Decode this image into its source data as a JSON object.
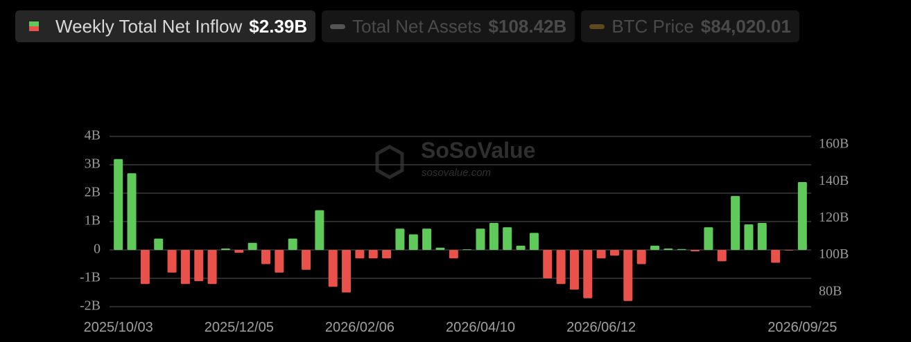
{
  "chart_data": {
    "type": "bar",
    "series": [
      {
        "name": "Weekly Total Net Inflow",
        "legend_value": "$2.39B",
        "color": "#5fc95a",
        "negative_color": "#e8524a",
        "values": [
          3.2,
          2.7,
          -1.2,
          0.4,
          -0.8,
          -1.2,
          -1.1,
          -1.2,
          0.05,
          -0.1,
          0.25,
          -0.5,
          -0.8,
          0.4,
          -0.7,
          1.4,
          -1.3,
          -1.5,
          -0.3,
          -0.3,
          -0.3,
          0.75,
          0.55,
          0.75,
          0.08,
          -0.3,
          0.02,
          0.75,
          0.95,
          0.8,
          0.15,
          0.6,
          -1.0,
          -1.2,
          -1.4,
          -1.7,
          -0.3,
          -0.2,
          -1.8,
          -0.5,
          0.15,
          0.05,
          0.03,
          -0.05,
          0.8,
          -0.4,
          1.9,
          0.9,
          0.95,
          -0.45,
          -0.02,
          2.39
        ]
      }
    ],
    "inactive_series": [
      {
        "name": "Total Net Assets",
        "legend_value": "$108.42B",
        "color": "#555555"
      },
      {
        "name": "BTC Price",
        "legend_value": "$84,020.01",
        "color": "#5e4a1e"
      }
    ],
    "categories": [
      "2025/10/03",
      null,
      null,
      null,
      null,
      null,
      null,
      null,
      null,
      "2025/12/05",
      null,
      null,
      null,
      null,
      null,
      null,
      null,
      null,
      "2026/02/06",
      null,
      null,
      null,
      null,
      null,
      null,
      null,
      null,
      "2026/04/10",
      null,
      null,
      null,
      null,
      null,
      null,
      null,
      null,
      "2026/06/12",
      null,
      null,
      null,
      null,
      null,
      null,
      null,
      null,
      null,
      null,
      null,
      null,
      null,
      null,
      "2026/09/25"
    ],
    "ylim": [
      -2,
      4
    ],
    "yticks": [
      {
        "value": -2,
        "label": "-2B"
      },
      {
        "value": -1,
        "label": "-1B"
      },
      0,
      {
        "value": 1,
        "label": "1B"
      },
      {
        "value": 2,
        "label": "2B"
      },
      {
        "value": 3,
        "label": "3B"
      },
      {
        "value": 4,
        "label": "4B"
      }
    ],
    "y2lim": [
      72,
      164.5
    ],
    "y2ticks": [
      {
        "value": 80,
        "label": "80B"
      },
      {
        "value": 100,
        "label": "100B"
      },
      {
        "value": 120,
        "label": "120B"
      },
      {
        "value": 140,
        "label": "140B"
      },
      {
        "value": 160,
        "label": "160B"
      }
    ],
    "grid": true,
    "watermark": {
      "title": "SoSoValue",
      "subtitle": "sosovalue.com"
    }
  }
}
